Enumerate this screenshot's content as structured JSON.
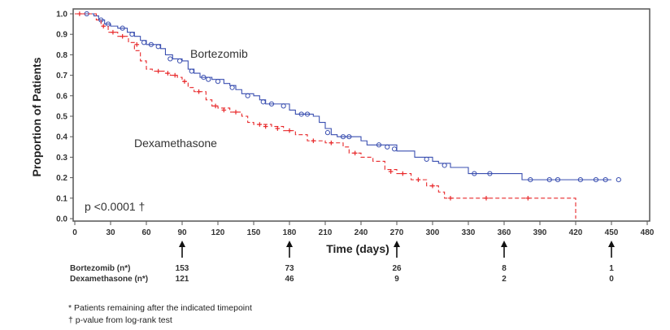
{
  "chart_data": {
    "type": "line",
    "subtype": "kaplan-meier",
    "title": "",
    "xlabel": "Time (days)",
    "ylabel": "Proportion of Patients",
    "xlim": [
      0,
      480
    ],
    "ylim": [
      0.0,
      1.0
    ],
    "xticks": [
      0,
      30,
      60,
      90,
      120,
      150,
      180,
      210,
      240,
      270,
      300,
      330,
      360,
      390,
      420,
      450,
      480
    ],
    "yticks": [
      "0.0",
      "0.1",
      "0.2",
      "0.3",
      "0.4",
      "0.5",
      "0.6",
      "0.7",
      "0.8",
      "0.9",
      "1.0"
    ],
    "grid": false,
    "annotation": "p <0.0001 †",
    "series": [
      {
        "name": "Bortezomib",
        "color": "#3a4fb0",
        "style": "solid",
        "censor_marker": "circle",
        "x": [
          0,
          12,
          16,
          20,
          25,
          30,
          36,
          44,
          50,
          55,
          60,
          68,
          72,
          76,
          82,
          90,
          95,
          100,
          105,
          115,
          125,
          130,
          135,
          140,
          150,
          155,
          160,
          170,
          180,
          185,
          200,
          205,
          210,
          215,
          220,
          235,
          240,
          245,
          270,
          285,
          300,
          305,
          315,
          330,
          350,
          375,
          450
        ],
        "y": [
          1.0,
          1.0,
          0.99,
          0.97,
          0.95,
          0.94,
          0.93,
          0.91,
          0.89,
          0.87,
          0.85,
          0.85,
          0.83,
          0.8,
          0.78,
          0.77,
          0.73,
          0.71,
          0.69,
          0.68,
          0.66,
          0.65,
          0.63,
          0.61,
          0.6,
          0.58,
          0.56,
          0.56,
          0.53,
          0.51,
          0.5,
          0.47,
          0.44,
          0.41,
          0.4,
          0.4,
          0.38,
          0.36,
          0.33,
          0.3,
          0.28,
          0.27,
          0.25,
          0.22,
          0.22,
          0.19,
          0.19
        ],
        "censored": [
          [
            10,
            1.0
          ],
          [
            22,
            0.97
          ],
          [
            28,
            0.95
          ],
          [
            40,
            0.93
          ],
          [
            48,
            0.9
          ],
          [
            58,
            0.86
          ],
          [
            64,
            0.85
          ],
          [
            70,
            0.84
          ],
          [
            80,
            0.78
          ],
          [
            88,
            0.77
          ],
          [
            98,
            0.72
          ],
          [
            108,
            0.69
          ],
          [
            112,
            0.68
          ],
          [
            120,
            0.67
          ],
          [
            132,
            0.64
          ],
          [
            145,
            0.6
          ],
          [
            158,
            0.57
          ],
          [
            165,
            0.56
          ],
          [
            175,
            0.55
          ],
          [
            190,
            0.51
          ],
          [
            195,
            0.51
          ],
          [
            212,
            0.42
          ],
          [
            225,
            0.4
          ],
          [
            230,
            0.4
          ],
          [
            255,
            0.36
          ],
          [
            262,
            0.35
          ],
          [
            268,
            0.34
          ],
          [
            295,
            0.29
          ],
          [
            310,
            0.26
          ],
          [
            335,
            0.22
          ],
          [
            348,
            0.22
          ],
          [
            382,
            0.19
          ],
          [
            398,
            0.19
          ],
          [
            405,
            0.19
          ],
          [
            424,
            0.19
          ],
          [
            437,
            0.19
          ],
          [
            445,
            0.19
          ],
          [
            456,
            0.19
          ]
        ]
      },
      {
        "name": "Dexamethasone",
        "color": "#e8282a",
        "style": "dashed",
        "censor_marker": "plus",
        "x": [
          0,
          14,
          18,
          22,
          28,
          36,
          45,
          50,
          55,
          60,
          65,
          75,
          80,
          86,
          90,
          95,
          100,
          110,
          115,
          120,
          130,
          140,
          145,
          150,
          165,
          175,
          185,
          195,
          210,
          225,
          230,
          240,
          250,
          260,
          270,
          282,
          295,
          305,
          310,
          420
        ],
        "y": [
          1.0,
          1.0,
          0.97,
          0.94,
          0.91,
          0.89,
          0.86,
          0.82,
          0.77,
          0.73,
          0.72,
          0.71,
          0.7,
          0.69,
          0.67,
          0.64,
          0.62,
          0.58,
          0.55,
          0.54,
          0.52,
          0.5,
          0.47,
          0.46,
          0.45,
          0.43,
          0.41,
          0.38,
          0.37,
          0.35,
          0.32,
          0.3,
          0.28,
          0.24,
          0.22,
          0.19,
          0.16,
          0.13,
          0.1,
          0.0
        ],
        "censored": [
          [
            4,
            1.0
          ],
          [
            24,
            0.94
          ],
          [
            32,
            0.91
          ],
          [
            40,
            0.89
          ],
          [
            52,
            0.85
          ],
          [
            70,
            0.72
          ],
          [
            78,
            0.71
          ],
          [
            84,
            0.7
          ],
          [
            92,
            0.67
          ],
          [
            104,
            0.62
          ],
          [
            118,
            0.55
          ],
          [
            125,
            0.53
          ],
          [
            135,
            0.52
          ],
          [
            155,
            0.46
          ],
          [
            160,
            0.45
          ],
          [
            170,
            0.44
          ],
          [
            180,
            0.43
          ],
          [
            200,
            0.38
          ],
          [
            215,
            0.37
          ],
          [
            235,
            0.32
          ],
          [
            265,
            0.23
          ],
          [
            275,
            0.22
          ],
          [
            288,
            0.19
          ],
          [
            300,
            0.16
          ],
          [
            315,
            0.1
          ],
          [
            345,
            0.1
          ],
          [
            380,
            0.1
          ]
        ]
      }
    ],
    "series_labels": [
      {
        "name": "Bortezomib",
        "at": [
          160,
          0.78
        ]
      },
      {
        "name": "Dexamethasone",
        "at": [
          160,
          0.38
        ]
      }
    ],
    "risk_table": {
      "timepoints": [
        90,
        180,
        270,
        360,
        450
      ],
      "rows": [
        {
          "label": "Bortezomib (n*)",
          "values": [
            "153",
            "73",
            "26",
            "8",
            "1"
          ]
        },
        {
          "label": "Dexamethasone (n*)",
          "values": [
            "121",
            "46",
            "9",
            "2",
            "0"
          ]
        }
      ]
    }
  },
  "footnotes": [
    "* Patients remaining after the indicated timepoint",
    "† p-value from log-rank test"
  ]
}
